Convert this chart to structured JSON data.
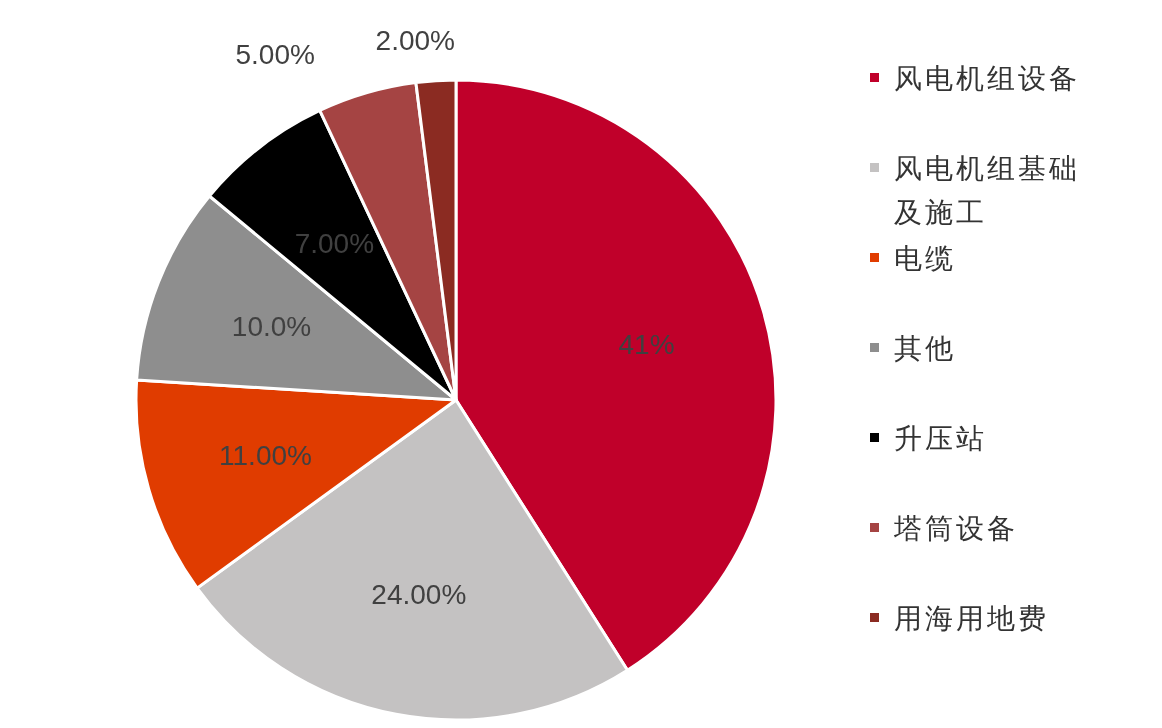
{
  "chart_data": {
    "type": "pie",
    "categories": [
      "风电机组设备",
      "风电机组基础及施工",
      "电缆",
      "其他",
      "升压站",
      "塔筒设备",
      "用海用地费"
    ],
    "values": [
      41,
      24,
      11,
      10,
      7,
      5,
      2
    ],
    "colors": [
      "#c0002a",
      "#c4c2c2",
      "#e03c00",
      "#8e8e8e",
      "#000000",
      "#a54443",
      "#8b2b22"
    ],
    "value_labels": [
      "41%",
      "24.00%",
      "11.00%",
      "10.0%",
      "7.00%",
      "5.00%",
      "2.00%"
    ],
    "legend": "right"
  }
}
